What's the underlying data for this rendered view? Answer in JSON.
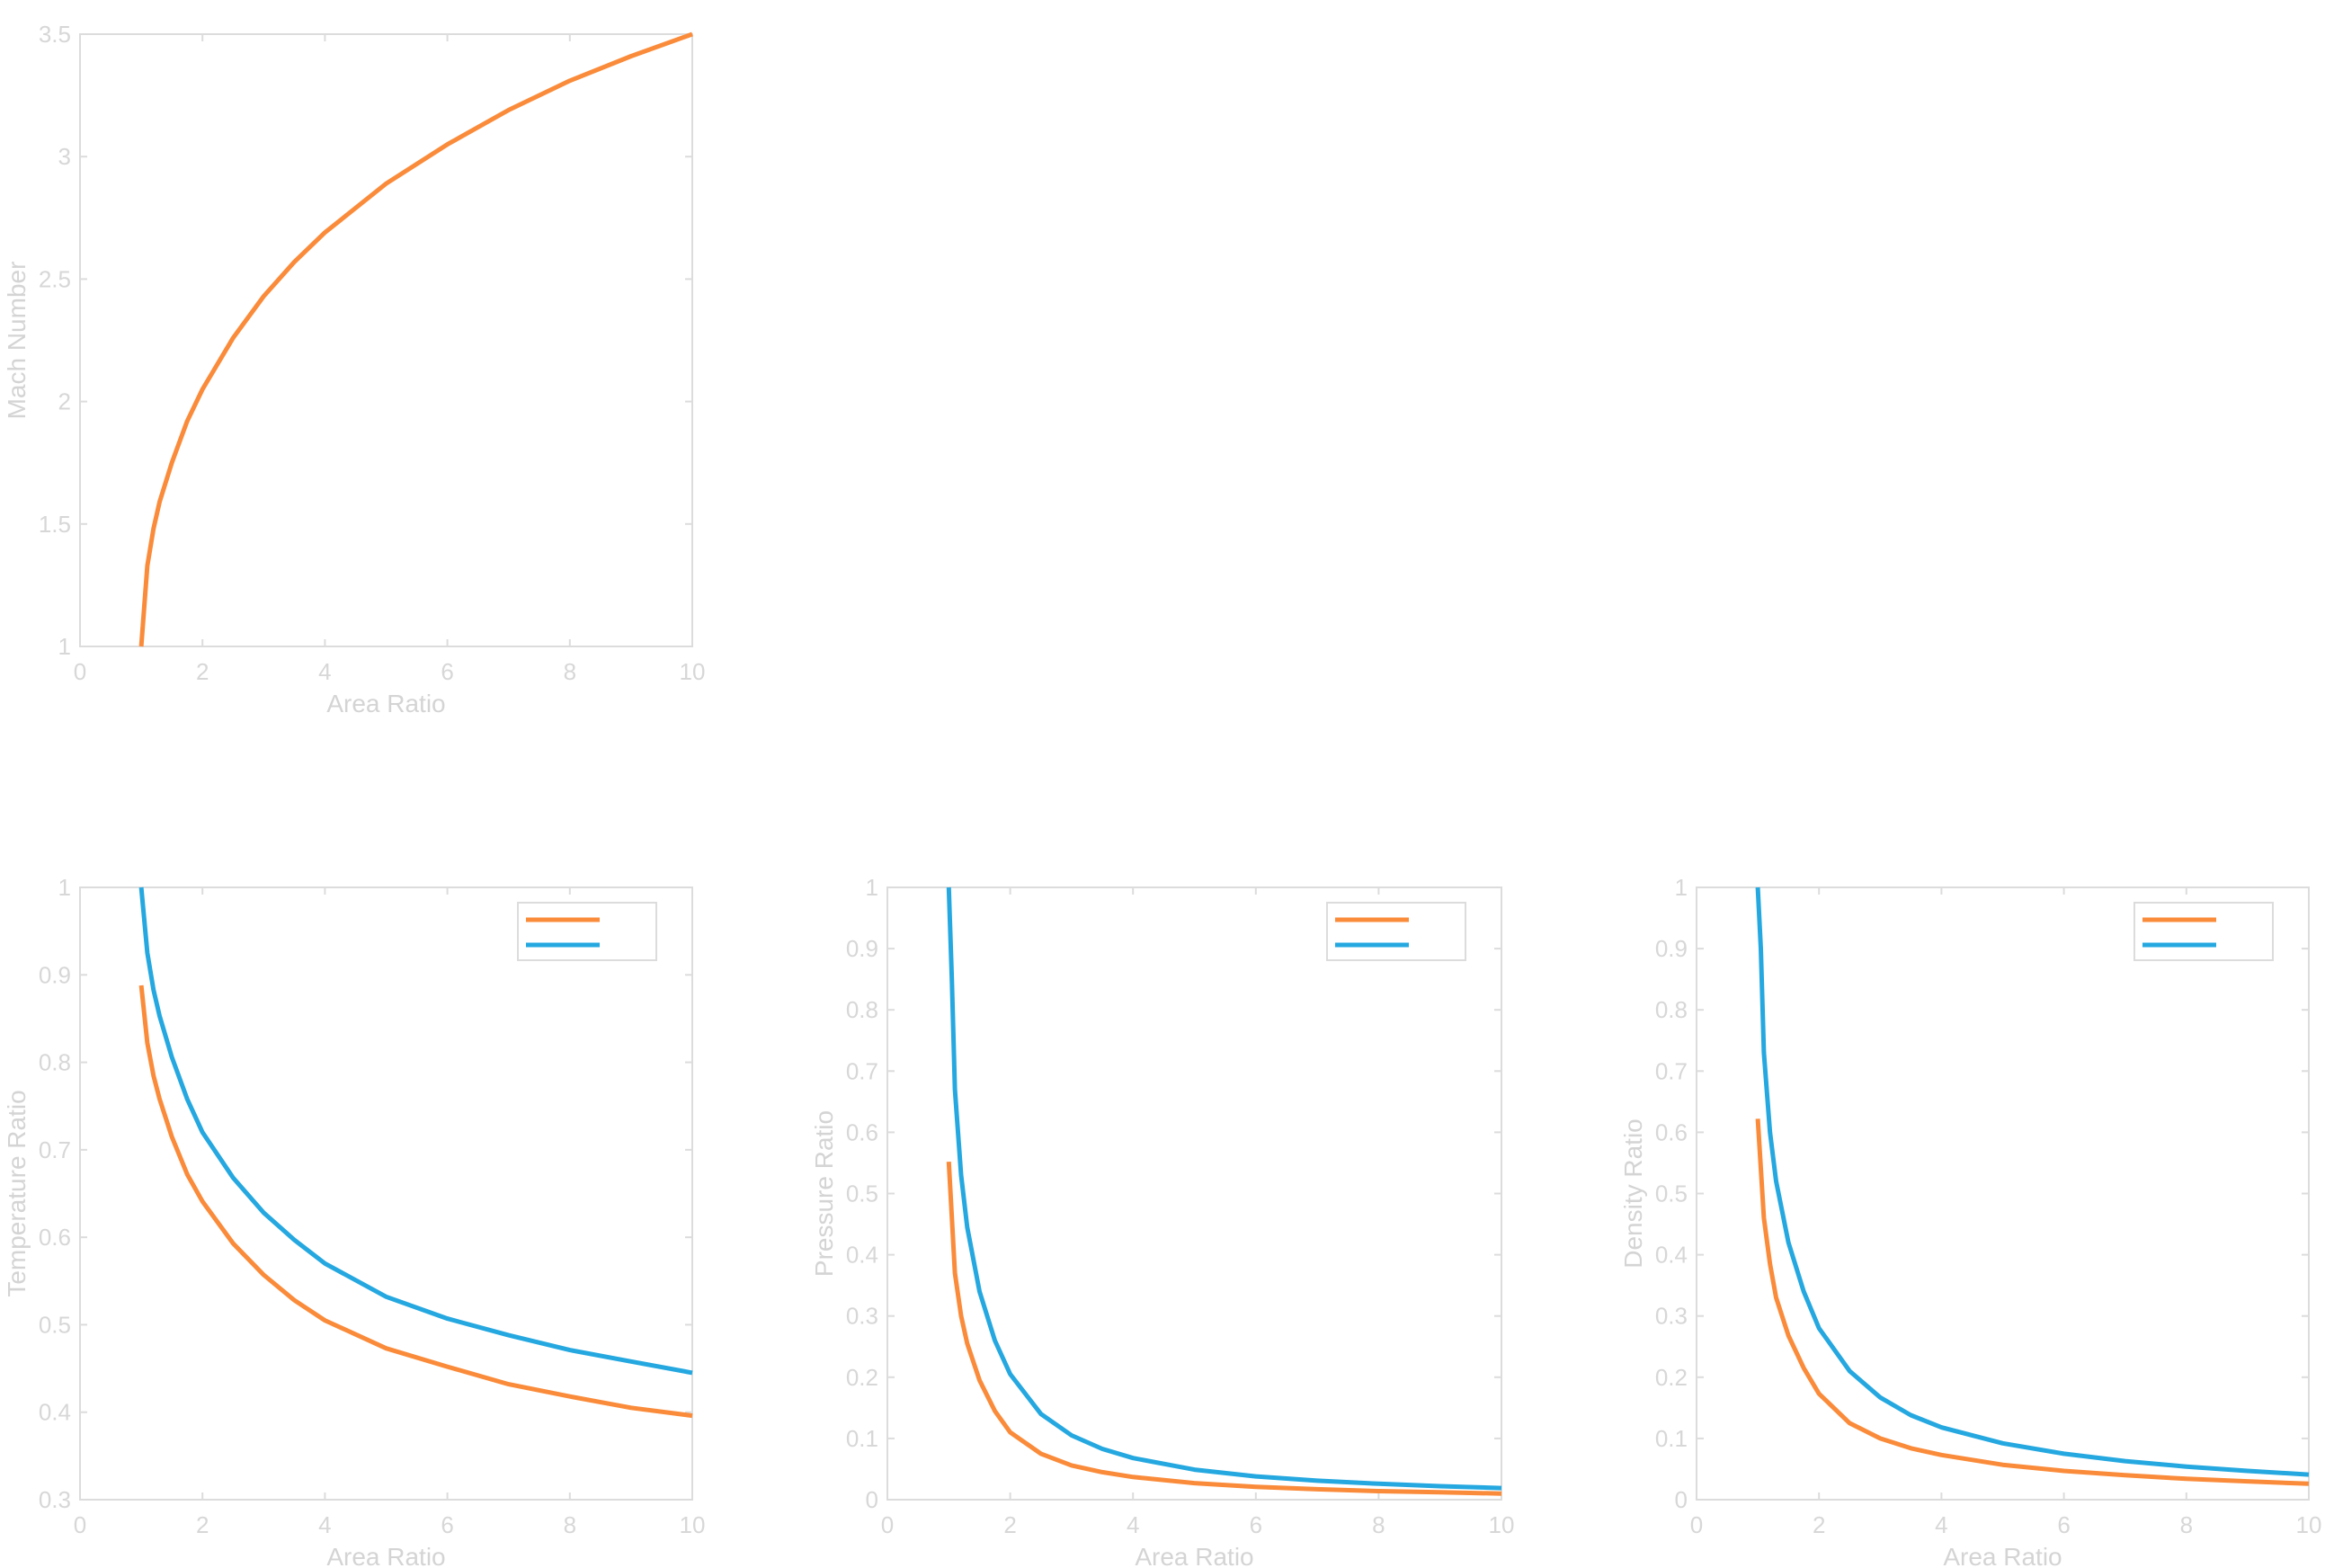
{
  "colors": {
    "series_1": "#fa8b3a",
    "series_2": "#25a8e0",
    "axis": "#dcdcdc",
    "text": "#d7d7d7"
  },
  "chart_data": [
    {
      "type": "line",
      "xlabel": "Area Ratio",
      "ylabel": "Mach Number",
      "xlim": [
        0,
        10
      ],
      "ylim": [
        1,
        3.5
      ],
      "xticks": [
        0,
        2,
        4,
        6,
        8,
        10
      ],
      "yticks": [
        1,
        1.5,
        2,
        2.5,
        3,
        3.5
      ],
      "ytick_labels": [
        "1",
        "1.5",
        "2",
        "2.5",
        "3",
        "3.5"
      ],
      "grid": false,
      "legend": null,
      "series": [
        {
          "color": "#fa8b3a",
          "x": [
            1,
            1.1,
            1.2,
            1.3,
            1.5,
            1.75,
            2,
            2.5,
            3,
            3.5,
            4,
            5,
            6,
            7,
            8,
            9,
            10
          ],
          "y": [
            1.0,
            1.33,
            1.48,
            1.59,
            1.75,
            1.92,
            2.05,
            2.26,
            2.43,
            2.57,
            2.69,
            2.89,
            3.05,
            3.19,
            3.31,
            3.41,
            3.5
          ]
        }
      ]
    },
    {
      "type": "line",
      "xlabel": "Area Ratio",
      "ylabel": "Temperature Ratio",
      "xlim": [
        0,
        10
      ],
      "ylim": [
        0.3,
        1
      ],
      "xticks": [
        0,
        2,
        4,
        6,
        8,
        10
      ],
      "yticks": [
        0.3,
        0.4,
        0.5,
        0.6,
        0.7,
        0.8,
        0.9,
        1
      ],
      "ytick_labels": [
        "0.3",
        "0.4",
        "0.5",
        "0.6",
        "0.7",
        "0.8",
        "0.9",
        "1"
      ],
      "grid": false,
      "legend": "top-right",
      "series": [
        {
          "color": "#fa8b3a",
          "x": [
            1,
            1.1,
            1.2,
            1.3,
            1.5,
            1.75,
            2,
            2.5,
            3,
            3.5,
            4,
            5,
            6,
            7,
            8,
            9,
            10
          ],
          "y": [
            0.888,
            0.822,
            0.785,
            0.758,
            0.715,
            0.672,
            0.641,
            0.593,
            0.557,
            0.528,
            0.505,
            0.473,
            0.452,
            0.432,
            0.418,
            0.405,
            0.396
          ]
        },
        {
          "color": "#25a8e0",
          "x": [
            1,
            1.1,
            1.2,
            1.3,
            1.5,
            1.75,
            2,
            2.5,
            3,
            3.5,
            4,
            5,
            6,
            7,
            8,
            9,
            10
          ],
          "y": [
            1.0,
            0.925,
            0.883,
            0.853,
            0.806,
            0.758,
            0.72,
            0.668,
            0.628,
            0.597,
            0.57,
            0.532,
            0.507,
            0.488,
            0.471,
            0.458,
            0.445
          ]
        }
      ]
    },
    {
      "type": "line",
      "xlabel": "Area Ratio",
      "ylabel": "Pressure Ratio",
      "xlim": [
        0,
        10
      ],
      "ylim": [
        0,
        1
      ],
      "xticks": [
        0,
        2,
        4,
        6,
        8,
        10
      ],
      "yticks": [
        0,
        0.1,
        0.2,
        0.3,
        0.4,
        0.5,
        0.6,
        0.7,
        0.8,
        0.9,
        1
      ],
      "ytick_labels": [
        "0",
        "0.1",
        "0.2",
        "0.3",
        "0.4",
        "0.5",
        "0.6",
        "0.7",
        "0.8",
        "0.9",
        "1"
      ],
      "grid": false,
      "legend": "top-right",
      "series": [
        {
          "color": "#fa8b3a",
          "x": [
            1,
            1.1,
            1.2,
            1.3,
            1.5,
            1.75,
            2,
            2.5,
            3,
            3.5,
            4,
            5,
            6,
            7,
            8,
            9,
            10
          ],
          "y": [
            0.552,
            0.37,
            0.3,
            0.255,
            0.195,
            0.145,
            0.11,
            0.075,
            0.056,
            0.045,
            0.037,
            0.027,
            0.021,
            0.017,
            0.014,
            0.012,
            0.01
          ]
        },
        {
          "color": "#25a8e0",
          "x": [
            1,
            1.05,
            1.1,
            1.2,
            1.3,
            1.5,
            1.75,
            2,
            2.5,
            3,
            3.5,
            4,
            5,
            6,
            7,
            8,
            9,
            10
          ],
          "y": [
            1.0,
            0.85,
            0.67,
            0.53,
            0.445,
            0.34,
            0.26,
            0.205,
            0.14,
            0.105,
            0.083,
            0.068,
            0.049,
            0.038,
            0.031,
            0.026,
            0.022,
            0.019
          ]
        }
      ]
    },
    {
      "type": "line",
      "xlabel": "Area Ratio",
      "ylabel": "Density Ratio",
      "xlim": [
        0,
        10
      ],
      "ylim": [
        0,
        1
      ],
      "xticks": [
        0,
        2,
        4,
        6,
        8,
        10
      ],
      "yticks": [
        0,
        0.1,
        0.2,
        0.3,
        0.4,
        0.5,
        0.6,
        0.7,
        0.8,
        0.9,
        1
      ],
      "ytick_labels": [
        "0",
        "0.1",
        "0.2",
        "0.3",
        "0.4",
        "0.5",
        "0.6",
        "0.7",
        "0.8",
        "0.9",
        "1"
      ],
      "grid": false,
      "legend": "top-right",
      "series": [
        {
          "color": "#fa8b3a",
          "x": [
            1,
            1.1,
            1.2,
            1.3,
            1.5,
            1.75,
            2,
            2.5,
            3,
            3.5,
            4,
            5,
            6,
            7,
            8,
            9,
            10
          ],
          "y": [
            0.622,
            0.46,
            0.385,
            0.33,
            0.268,
            0.215,
            0.173,
            0.125,
            0.1,
            0.084,
            0.073,
            0.057,
            0.047,
            0.04,
            0.034,
            0.03,
            0.026
          ]
        },
        {
          "color": "#25a8e0",
          "x": [
            1,
            1.05,
            1.1,
            1.2,
            1.3,
            1.5,
            1.75,
            2,
            2.5,
            3,
            3.5,
            4,
            5,
            6,
            7,
            8,
            9,
            10
          ],
          "y": [
            1.0,
            0.9,
            0.73,
            0.6,
            0.52,
            0.42,
            0.34,
            0.28,
            0.21,
            0.167,
            0.138,
            0.118,
            0.092,
            0.075,
            0.063,
            0.054,
            0.047,
            0.041
          ]
        }
      ]
    }
  ]
}
